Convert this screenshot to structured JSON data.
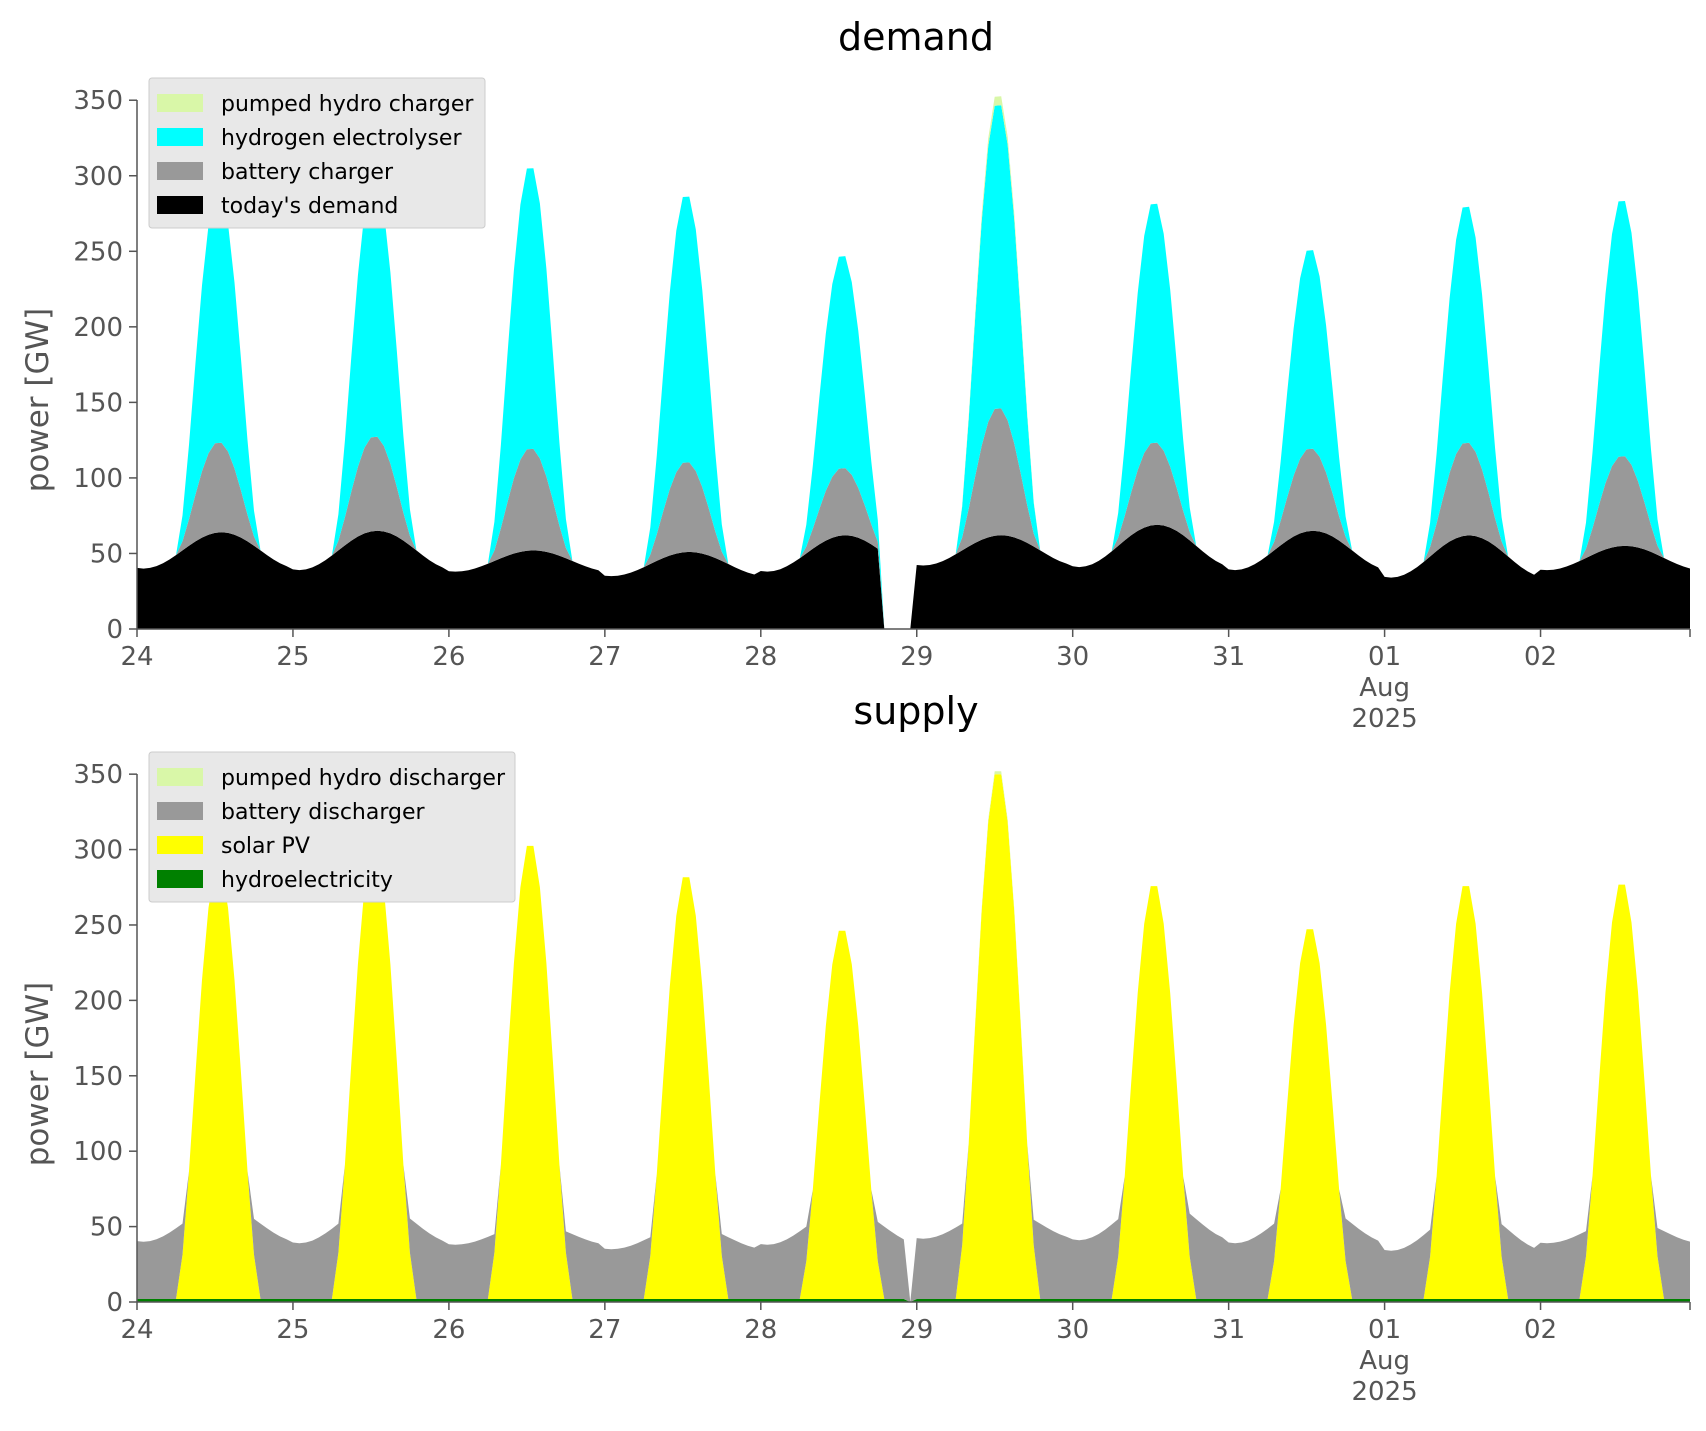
{
  "chart_data": [
    {
      "type": "area",
      "stacked": true,
      "title": "demand",
      "ylabel": "power [GW]",
      "xlabel": "",
      "ylim": [
        0,
        370
      ],
      "yticks": [
        0,
        50,
        100,
        150,
        200,
        250,
        300,
        350
      ],
      "x_range": [
        "2025-07-24 00:00",
        "2025-08-02 23:00"
      ],
      "xticks": [
        {
          "date": "2025-07-24",
          "label": "24"
        },
        {
          "date": "2025-07-25",
          "label": "25"
        },
        {
          "date": "2025-07-26",
          "label": "26"
        },
        {
          "date": "2025-07-27",
          "label": "27"
        },
        {
          "date": "2025-07-28",
          "label": "28"
        },
        {
          "date": "2025-07-29",
          "label": "29"
        },
        {
          "date": "2025-07-30",
          "label": "30"
        },
        {
          "date": "2025-07-31",
          "label": "31"
        },
        {
          "date": "2025-08-01",
          "label": "01",
          "label2": "Aug",
          "label3": "2025"
        },
        {
          "date": "2025-08-02",
          "label": "02"
        }
      ],
      "grid": false,
      "legend": "top-left",
      "gap": {
        "start": "2025-07-28 19:00",
        "end": "2025-07-29 00:00"
      },
      "series": [
        {
          "name": "today's demand",
          "color": "#000000",
          "profile": "demand",
          "daily_mean": [
            52,
            52,
            45,
            43,
            50,
            52,
            55,
            52,
            48,
            47
          ],
          "daily_amp": [
            12,
            13,
            7,
            8,
            12,
            10,
            14,
            13,
            14,
            8
          ]
        },
        {
          "name": "battery charger",
          "color": "#999999",
          "profile": "solar",
          "daily_peak": [
            60,
            63,
            68,
            60,
            45,
            85,
            55,
            55,
            62,
            60
          ]
        },
        {
          "name": "hydrogen electrolyser",
          "color": "#00ffff",
          "profile": "solar",
          "daily_peak": [
            168,
            173,
            188,
            178,
            142,
            203,
            160,
            133,
            158,
            171
          ]
        },
        {
          "name": "pumped hydro charger",
          "color": "#d9f7a8",
          "profile": "solar",
          "daily_peak": [
            0,
            0,
            0,
            0,
            0,
            6,
            0,
            0,
            0,
            0
          ]
        }
      ]
    },
    {
      "type": "area",
      "stacked": true,
      "title": "supply",
      "ylabel": "power [GW]",
      "xlabel": "",
      "ylim": [
        0,
        370
      ],
      "yticks": [
        0,
        50,
        100,
        150,
        200,
        250,
        300,
        350
      ],
      "x_range": [
        "2025-07-24 00:00",
        "2025-08-02 23:00"
      ],
      "xticks": [
        {
          "date": "2025-07-24",
          "label": "24"
        },
        {
          "date": "2025-07-25",
          "label": "25"
        },
        {
          "date": "2025-07-26",
          "label": "26"
        },
        {
          "date": "2025-07-27",
          "label": "27"
        },
        {
          "date": "2025-07-28",
          "label": "28"
        },
        {
          "date": "2025-07-29",
          "label": "29"
        },
        {
          "date": "2025-07-30",
          "label": "30"
        },
        {
          "date": "2025-07-31",
          "label": "31"
        },
        {
          "date": "2025-08-01",
          "label": "01",
          "label2": "Aug",
          "label3": "2025"
        },
        {
          "date": "2025-08-02",
          "label": "02"
        }
      ],
      "grid": false,
      "legend": "top-left",
      "gap": {
        "start": "2025-07-28 23:00",
        "end": "2025-07-29 00:00"
      },
      "series": [
        {
          "name": "hydroelectricity",
          "color": "#008000",
          "profile": "constant",
          "value": 2
        },
        {
          "name": "solar PV",
          "color": "#ffff00",
          "profile": "solar",
          "daily_peak": [
            289,
            303,
            304,
            283,
            247,
            352,
            277,
            248,
            277,
            278
          ]
        },
        {
          "name": "battery discharger",
          "color": "#999999",
          "profile": "night_fill"
        },
        {
          "name": "pumped hydro discharger",
          "color": "#d9f7a8",
          "profile": "solar",
          "daily_peak": [
            0,
            0,
            0,
            0,
            0,
            2,
            0,
            0,
            0,
            0
          ]
        }
      ]
    }
  ]
}
